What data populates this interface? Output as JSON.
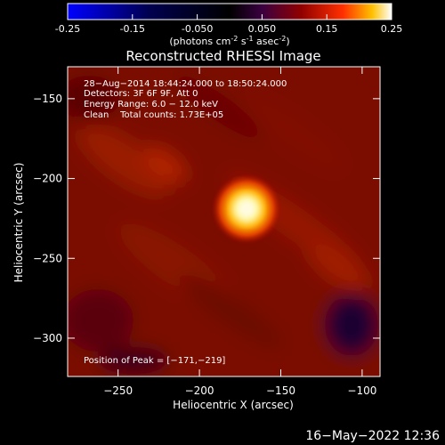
{
  "colorbar": {
    "tick_labels": [
      "-0.25",
      "-0.15",
      "-0.050",
      "0.050",
      "0.15",
      "0.25"
    ],
    "units_text": "(photons cm",
    "units_exp1": "-2",
    "units_mid1": " s",
    "units_exp2": "-1",
    "units_mid2": " asec",
    "units_exp3": "-2",
    "units_end": ")",
    "range": [
      -0.25,
      0.25
    ],
    "colors": [
      "#0000ff",
      "#000050",
      "#000000",
      "#3a0040",
      "#800000",
      "#ff3000",
      "#ffc000",
      "#ffffff"
    ]
  },
  "chart_data": {
    "type": "heatmap",
    "title": "Reconstructed RHESSI Image",
    "xlabel": "Heliocentric X (arcsec)",
    "ylabel": "Heliocentric Y (arcsec)",
    "xlim": [
      -281,
      -89
    ],
    "ylim": [
      -324,
      -130
    ],
    "x_ticks": [
      -250,
      -200,
      -150,
      -100
    ],
    "x_tick_labels": [
      "−250",
      "−200",
      "−150",
      "−100"
    ],
    "y_ticks": [
      -150,
      -200,
      -250,
      -300
    ],
    "y_tick_labels": [
      "−150",
      "−200",
      "−250",
      "−300"
    ],
    "annotations": [
      "28−Aug−2014 18:44:24.000 to 18:50:24.000",
      "Detectors: 3F 6F 9F, Att 0",
      "Energy Range: 6.0 − 12.0 keV",
      "Clean    Total counts: 1.73E+05"
    ],
    "peak_label": "Position of Peak = [−171,−219]",
    "peak": {
      "x": -171,
      "y": -219
    }
  },
  "footer": {
    "timestamp": "16−May−2022 12:36"
  }
}
